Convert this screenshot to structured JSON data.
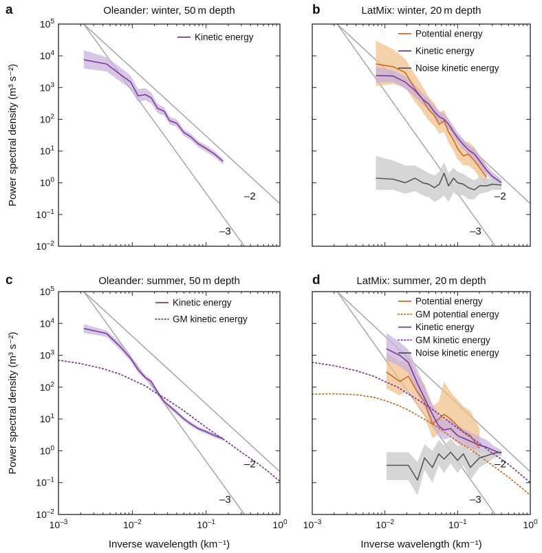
{
  "chart_data": [
    {
      "panel": "a",
      "type": "line",
      "title": "Oleander: winter, 50 m depth",
      "xlabel": "",
      "ylabel": "Power spectral density (m³ s⁻²)",
      "xscale": "log",
      "yscale": "log",
      "xlim": [
        0.001,
        1
      ],
      "ylim": [
        0.01,
        100000
      ],
      "x_tick_labels": [],
      "y_tick_labels": [
        {
          "m": "10",
          "e": "5"
        },
        {
          "m": "10",
          "e": "4"
        },
        {
          "m": "10",
          "e": "3"
        },
        {
          "m": "10",
          "e": "2"
        },
        {
          "m": "10",
          "e": "1"
        },
        {
          "m": "10",
          "e": "0"
        },
        {
          "m": "10",
          "e": "–1"
        },
        {
          "m": "10",
          "e": "–2"
        }
      ],
      "reference_lines": [
        {
          "slope_label": "–2",
          "points": [
            [
              0.0022,
              100000
            ],
            [
              1,
              0.22
            ]
          ]
        },
        {
          "slope_label": "–3",
          "points": [
            [
              0.0022,
              100000
            ],
            [
              0.33,
              0.01
            ]
          ]
        }
      ],
      "series": [
        {
          "name": "Kinetic energy",
          "color": "#7a3a9a",
          "style": "solid",
          "in_legend": true,
          "x": [
            0.0022,
            0.0045,
            0.007,
            0.0095,
            0.012,
            0.015,
            0.018,
            0.022,
            0.027,
            0.032,
            0.04,
            0.05,
            0.062,
            0.078,
            0.1,
            0.13,
            0.17
          ],
          "y": [
            7500,
            5500,
            2500,
            1500,
            550,
            600,
            480,
            220,
            180,
            90,
            75,
            38,
            28,
            17,
            12,
            8,
            4.7
          ],
          "band_low": [
            4000,
            3200,
            1500,
            900,
            350,
            400,
            320,
            160,
            130,
            70,
            58,
            30,
            22,
            13.5,
            9.5,
            6.4,
            3.8
          ],
          "band_high": [
            15000,
            9000,
            4200,
            2400,
            900,
            950,
            700,
            300,
            240,
            120,
            98,
            48,
            35,
            21,
            15,
            10,
            5.6
          ]
        }
      ],
      "slope_labels": [
        "–2",
        "–3"
      ],
      "legend_location": "top-right"
    },
    {
      "panel": "b",
      "type": "line",
      "title": "LatMix: winter, 20 m depth",
      "xlabel": "",
      "ylabel": "",
      "xscale": "log",
      "yscale": "log",
      "xlim": [
        0.001,
        1
      ],
      "ylim": [
        0.01,
        100000
      ],
      "x_tick_labels": [],
      "y_tick_labels": [],
      "reference_lines": [
        {
          "slope_label": "–2",
          "points": [
            [
              0.0022,
              100000
            ],
            [
              1,
              0.22
            ]
          ]
        },
        {
          "slope_label": "–3",
          "points": [
            [
              0.0022,
              100000
            ],
            [
              0.33,
              0.01
            ]
          ]
        }
      ],
      "series": [
        {
          "name": "Potential energy",
          "color": "#cf6b1f",
          "style": "solid",
          "in_legend": true,
          "x": [
            0.0075,
            0.013,
            0.019,
            0.026,
            0.033,
            0.04,
            0.048,
            0.056,
            0.065,
            0.075,
            0.088,
            0.1,
            0.12,
            0.14,
            0.17,
            0.2,
            0.25
          ],
          "y": [
            5500,
            4500,
            3000,
            900,
            420,
            200,
            130,
            70,
            90,
            40,
            22,
            12,
            7,
            8,
            5,
            3,
            1.5
          ],
          "band_low": [
            1100,
            1300,
            1000,
            350,
            170,
            90,
            60,
            35,
            40,
            18,
            10,
            5.5,
            3.5,
            3.5,
            2.5,
            1.4,
            0.8
          ],
          "band_high": [
            30000,
            16000,
            8000,
            2500,
            1100,
            500,
            320,
            160,
            200,
            95,
            52,
            28,
            18,
            20,
            13,
            7,
            3.2
          ]
        },
        {
          "name": "Kinetic energy",
          "color": "#7a3a9a",
          "style": "solid",
          "in_legend": true,
          "x": [
            0.0075,
            0.013,
            0.019,
            0.026,
            0.033,
            0.04,
            0.048,
            0.056,
            0.065,
            0.075,
            0.088,
            0.1,
            0.12,
            0.14,
            0.17,
            0.2,
            0.25,
            0.3,
            0.4
          ],
          "y": [
            2400,
            2300,
            1500,
            800,
            430,
            300,
            170,
            120,
            100,
            70,
            40,
            26,
            16,
            11,
            8,
            5,
            2.5,
            1.6,
            1.0
          ],
          "band_low": [
            1400,
            1500,
            900,
            550,
            300,
            210,
            120,
            85,
            70,
            50,
            28,
            18,
            11,
            7.5,
            5.5,
            3.4,
            1.8,
            1.2,
            0.8
          ],
          "band_high": [
            4500,
            3500,
            2300,
            1200,
            650,
            450,
            260,
            180,
            150,
            105,
            60,
            39,
            24,
            16,
            12,
            7.5,
            3.6,
            2.2,
            1.3
          ]
        },
        {
          "name": "Noise kinetic energy",
          "color": "#555555",
          "style": "solid",
          "in_legend": true,
          "x": [
            0.0075,
            0.013,
            0.019,
            0.026,
            0.033,
            0.04,
            0.048,
            0.056,
            0.065,
            0.075,
            0.088,
            0.1,
            0.12,
            0.14,
            0.17,
            0.2,
            0.25,
            0.3,
            0.4
          ],
          "y": [
            1.4,
            1.3,
            1.0,
            1.4,
            1.0,
            0.9,
            0.7,
            0.9,
            2.0,
            0.8,
            1.4,
            1.0,
            0.9,
            0.7,
            0.6,
            0.8,
            0.8,
            0.9,
            0.85
          ],
          "band_low": [
            0.6,
            0.6,
            0.45,
            0.55,
            0.4,
            0.35,
            0.25,
            0.3,
            0.4,
            0.25,
            0.5,
            0.4,
            0.4,
            0.3,
            0.3,
            0.45,
            0.5,
            0.6,
            0.6
          ],
          "band_high": [
            7.0,
            5.0,
            3.5,
            3.5,
            2.6,
            2.0,
            1.7,
            2.2,
            4.5,
            2.0,
            3.0,
            2.2,
            1.9,
            1.5,
            1.2,
            1.5,
            1.4,
            1.3,
            1.2
          ]
        }
      ],
      "slope_labels": [
        "–2",
        "–3"
      ],
      "legend_location": "top-right"
    },
    {
      "panel": "c",
      "type": "line",
      "title": "Oleander: summer, 50 m depth",
      "xlabel": "Inverse wavelength (km⁻¹)",
      "ylabel": "Power spectral density (m³ s⁻²)",
      "xscale": "log",
      "yscale": "log",
      "xlim": [
        0.001,
        1
      ],
      "ylim": [
        0.01,
        100000
      ],
      "x_tick_labels": [
        {
          "m": "10",
          "e": "–3"
        },
        {
          "m": "10",
          "e": "–2"
        },
        {
          "m": "10",
          "e": "–1"
        },
        {
          "m": "10",
          "e": "0"
        }
      ],
      "y_tick_labels": [
        {
          "m": "10",
          "e": "5"
        },
        {
          "m": "10",
          "e": "4"
        },
        {
          "m": "10",
          "e": "3"
        },
        {
          "m": "10",
          "e": "2"
        },
        {
          "m": "10",
          "e": "1"
        },
        {
          "m": "10",
          "e": "0"
        },
        {
          "m": "10",
          "e": "–1"
        },
        {
          "m": "10",
          "e": "–2"
        }
      ],
      "reference_lines": [
        {
          "slope_label": "–2",
          "points": [
            [
              0.0022,
              100000
            ],
            [
              1,
              0.22
            ]
          ]
        },
        {
          "slope_label": "–3",
          "points": [
            [
              0.0022,
              100000
            ],
            [
              0.33,
              0.01
            ]
          ]
        }
      ],
      "series": [
        {
          "name": "Kinetic energy",
          "color": "#7a3a9a",
          "style": "solid",
          "in_legend": true,
          "x": [
            0.0022,
            0.0045,
            0.007,
            0.0095,
            0.012,
            0.015,
            0.018,
            0.022,
            0.027,
            0.032,
            0.04,
            0.05,
            0.062,
            0.078,
            0.1,
            0.13,
            0.17
          ],
          "y": [
            7000,
            4800,
            1800,
            800,
            350,
            200,
            150,
            70,
            35,
            25,
            16,
            10,
            7,
            5,
            4,
            3,
            2.4
          ],
          "band_low": [
            5000,
            3800,
            1400,
            650,
            290,
            170,
            125,
            60,
            30,
            21,
            13.5,
            8.6,
            6.0,
            4.3,
            3.4,
            2.6,
            2.1
          ],
          "band_high": [
            9500,
            6000,
            2300,
            1000,
            420,
            240,
            180,
            82,
            41,
            29,
            19,
            11.6,
            8.1,
            5.8,
            4.6,
            3.4,
            2.7
          ]
        },
        {
          "name": "GM kinetic energy",
          "color": "#7a3a9a",
          "style": "dotted",
          "in_legend": true,
          "x": [
            0.001,
            0.002,
            0.004,
            0.007,
            0.01,
            0.015,
            0.02,
            0.03,
            0.05,
            0.07,
            0.1,
            0.15,
            0.2,
            0.3,
            0.5,
            0.7,
            1.0
          ],
          "y": [
            700,
            550,
            380,
            250,
            170,
            110,
            70,
            40,
            18,
            10,
            5.5,
            2.8,
            1.8,
            0.9,
            0.4,
            0.22,
            0.11
          ]
        }
      ],
      "slope_labels": [
        "–2",
        "–3"
      ],
      "legend_location": "top-right"
    },
    {
      "panel": "d",
      "type": "line",
      "title": "LatMix: summer, 20 m depth",
      "xlabel": "Inverse wavelength (km⁻¹)",
      "ylabel": "",
      "xscale": "log",
      "yscale": "log",
      "xlim": [
        0.001,
        1
      ],
      "ylim": [
        0.01,
        100000
      ],
      "x_tick_labels": [
        {
          "m": "10",
          "e": "–3"
        },
        {
          "m": "10",
          "e": "–2"
        },
        {
          "m": "10",
          "e": "–1"
        },
        {
          "m": "10",
          "e": "0"
        }
      ],
      "y_tick_labels": [],
      "reference_lines": [
        {
          "slope_label": "–2",
          "points": [
            [
              0.0022,
              100000
            ],
            [
              1,
              0.22
            ]
          ]
        },
        {
          "slope_label": "–3",
          "points": [
            [
              0.0022,
              100000
            ],
            [
              0.33,
              0.01
            ]
          ]
        }
      ],
      "series": [
        {
          "name": "Potential energy",
          "color": "#cf6b1f",
          "style": "solid",
          "in_legend": true,
          "x": [
            0.0105,
            0.016,
            0.021,
            0.028,
            0.035,
            0.045,
            0.055,
            0.065,
            0.08,
            0.1,
            0.12,
            0.15,
            0.2
          ],
          "y": [
            300,
            150,
            220,
            70,
            35,
            7,
            10,
            14,
            10,
            6,
            4,
            3,
            1.2
          ],
          "band_low": [
            90,
            55,
            80,
            25,
            12,
            2.5,
            3.5,
            5,
            4,
            2.5,
            1.6,
            1.2,
            0.5
          ],
          "band_high": [
            1200,
            600,
            900,
            250,
            120,
            25,
            35,
            150,
            70,
            40,
            25,
            18,
            5
          ]
        },
        {
          "name": "GM potential energy",
          "color": "#cf6b1f",
          "style": "dotted",
          "in_legend": true,
          "x": [
            0.001,
            0.002,
            0.004,
            0.007,
            0.01,
            0.015,
            0.02,
            0.03,
            0.05,
            0.07,
            0.1,
            0.15,
            0.2,
            0.3,
            0.5,
            0.7,
            1.0
          ],
          "y": [
            60,
            62,
            58,
            48,
            38,
            27,
            20,
            12,
            6,
            3.5,
            2.0,
            1.1,
            0.7,
            0.35,
            0.15,
            0.08,
            0.04
          ]
        },
        {
          "name": "Kinetic energy",
          "color": "#7a3a9a",
          "style": "solid",
          "in_legend": true,
          "x": [
            0.0105,
            0.016,
            0.021,
            0.028,
            0.035,
            0.045,
            0.055,
            0.065,
            0.08,
            0.1,
            0.12,
            0.15,
            0.2,
            0.25,
            0.32,
            0.4
          ],
          "y": [
            1600,
            1000,
            600,
            130,
            45,
            14,
            6,
            4.5,
            5,
            3,
            2.5,
            2,
            1.5,
            1.3,
            1.0,
            0.85
          ],
          "band_low": [
            700,
            450,
            280,
            60,
            22,
            7,
            3,
            2.3,
            2.6,
            1.7,
            1.4,
            1.2,
            0.95,
            0.85,
            0.75,
            0.7
          ],
          "band_high": [
            5000,
            2600,
            1500,
            350,
            110,
            30,
            13,
            9.5,
            10,
            6,
            5,
            3.8,
            2.8,
            2.2,
            1.4,
            1.05
          ]
        },
        {
          "name": "GM kinetic energy",
          "color": "#7a3a9a",
          "style": "dotted",
          "in_legend": true,
          "x": [
            0.001,
            0.002,
            0.004,
            0.007,
            0.01,
            0.015,
            0.02,
            0.03,
            0.05,
            0.07,
            0.1,
            0.15,
            0.2,
            0.3,
            0.5,
            0.7,
            1.0
          ],
          "y": [
            600,
            470,
            330,
            220,
            150,
            100,
            65,
            37,
            17,
            9.5,
            5.2,
            2.7,
            1.7,
            0.85,
            0.38,
            0.2,
            0.1
          ]
        },
        {
          "name": "Noise kinetic energy",
          "color": "#555555",
          "style": "solid",
          "in_legend": true,
          "x": [
            0.0105,
            0.016,
            0.021,
            0.028,
            0.035,
            0.045,
            0.055,
            0.065,
            0.08,
            0.1,
            0.12,
            0.15,
            0.2,
            0.25,
            0.32,
            0.4
          ],
          "y": [
            0.35,
            0.35,
            0.35,
            0.12,
            0.6,
            0.3,
            0.8,
            0.55,
            0.9,
            0.5,
            0.8,
            0.3,
            0.6,
            0.7,
            0.85,
            0.9
          ],
          "band_low": [
            0.12,
            0.12,
            0.12,
            0.04,
            0.25,
            0.1,
            0.35,
            0.2,
            0.4,
            0.2,
            0.35,
            0.12,
            0.3,
            0.4,
            0.6,
            0.7
          ],
          "band_high": [
            0.9,
            0.9,
            0.9,
            0.45,
            1.6,
            1.0,
            2.2,
            1.5,
            2.4,
            1.4,
            2.0,
            0.9,
            1.3,
            1.2,
            1.1,
            1.05
          ]
        }
      ],
      "slope_labels": [
        "–2",
        "–3"
      ],
      "legend_location": "top-right"
    }
  ]
}
